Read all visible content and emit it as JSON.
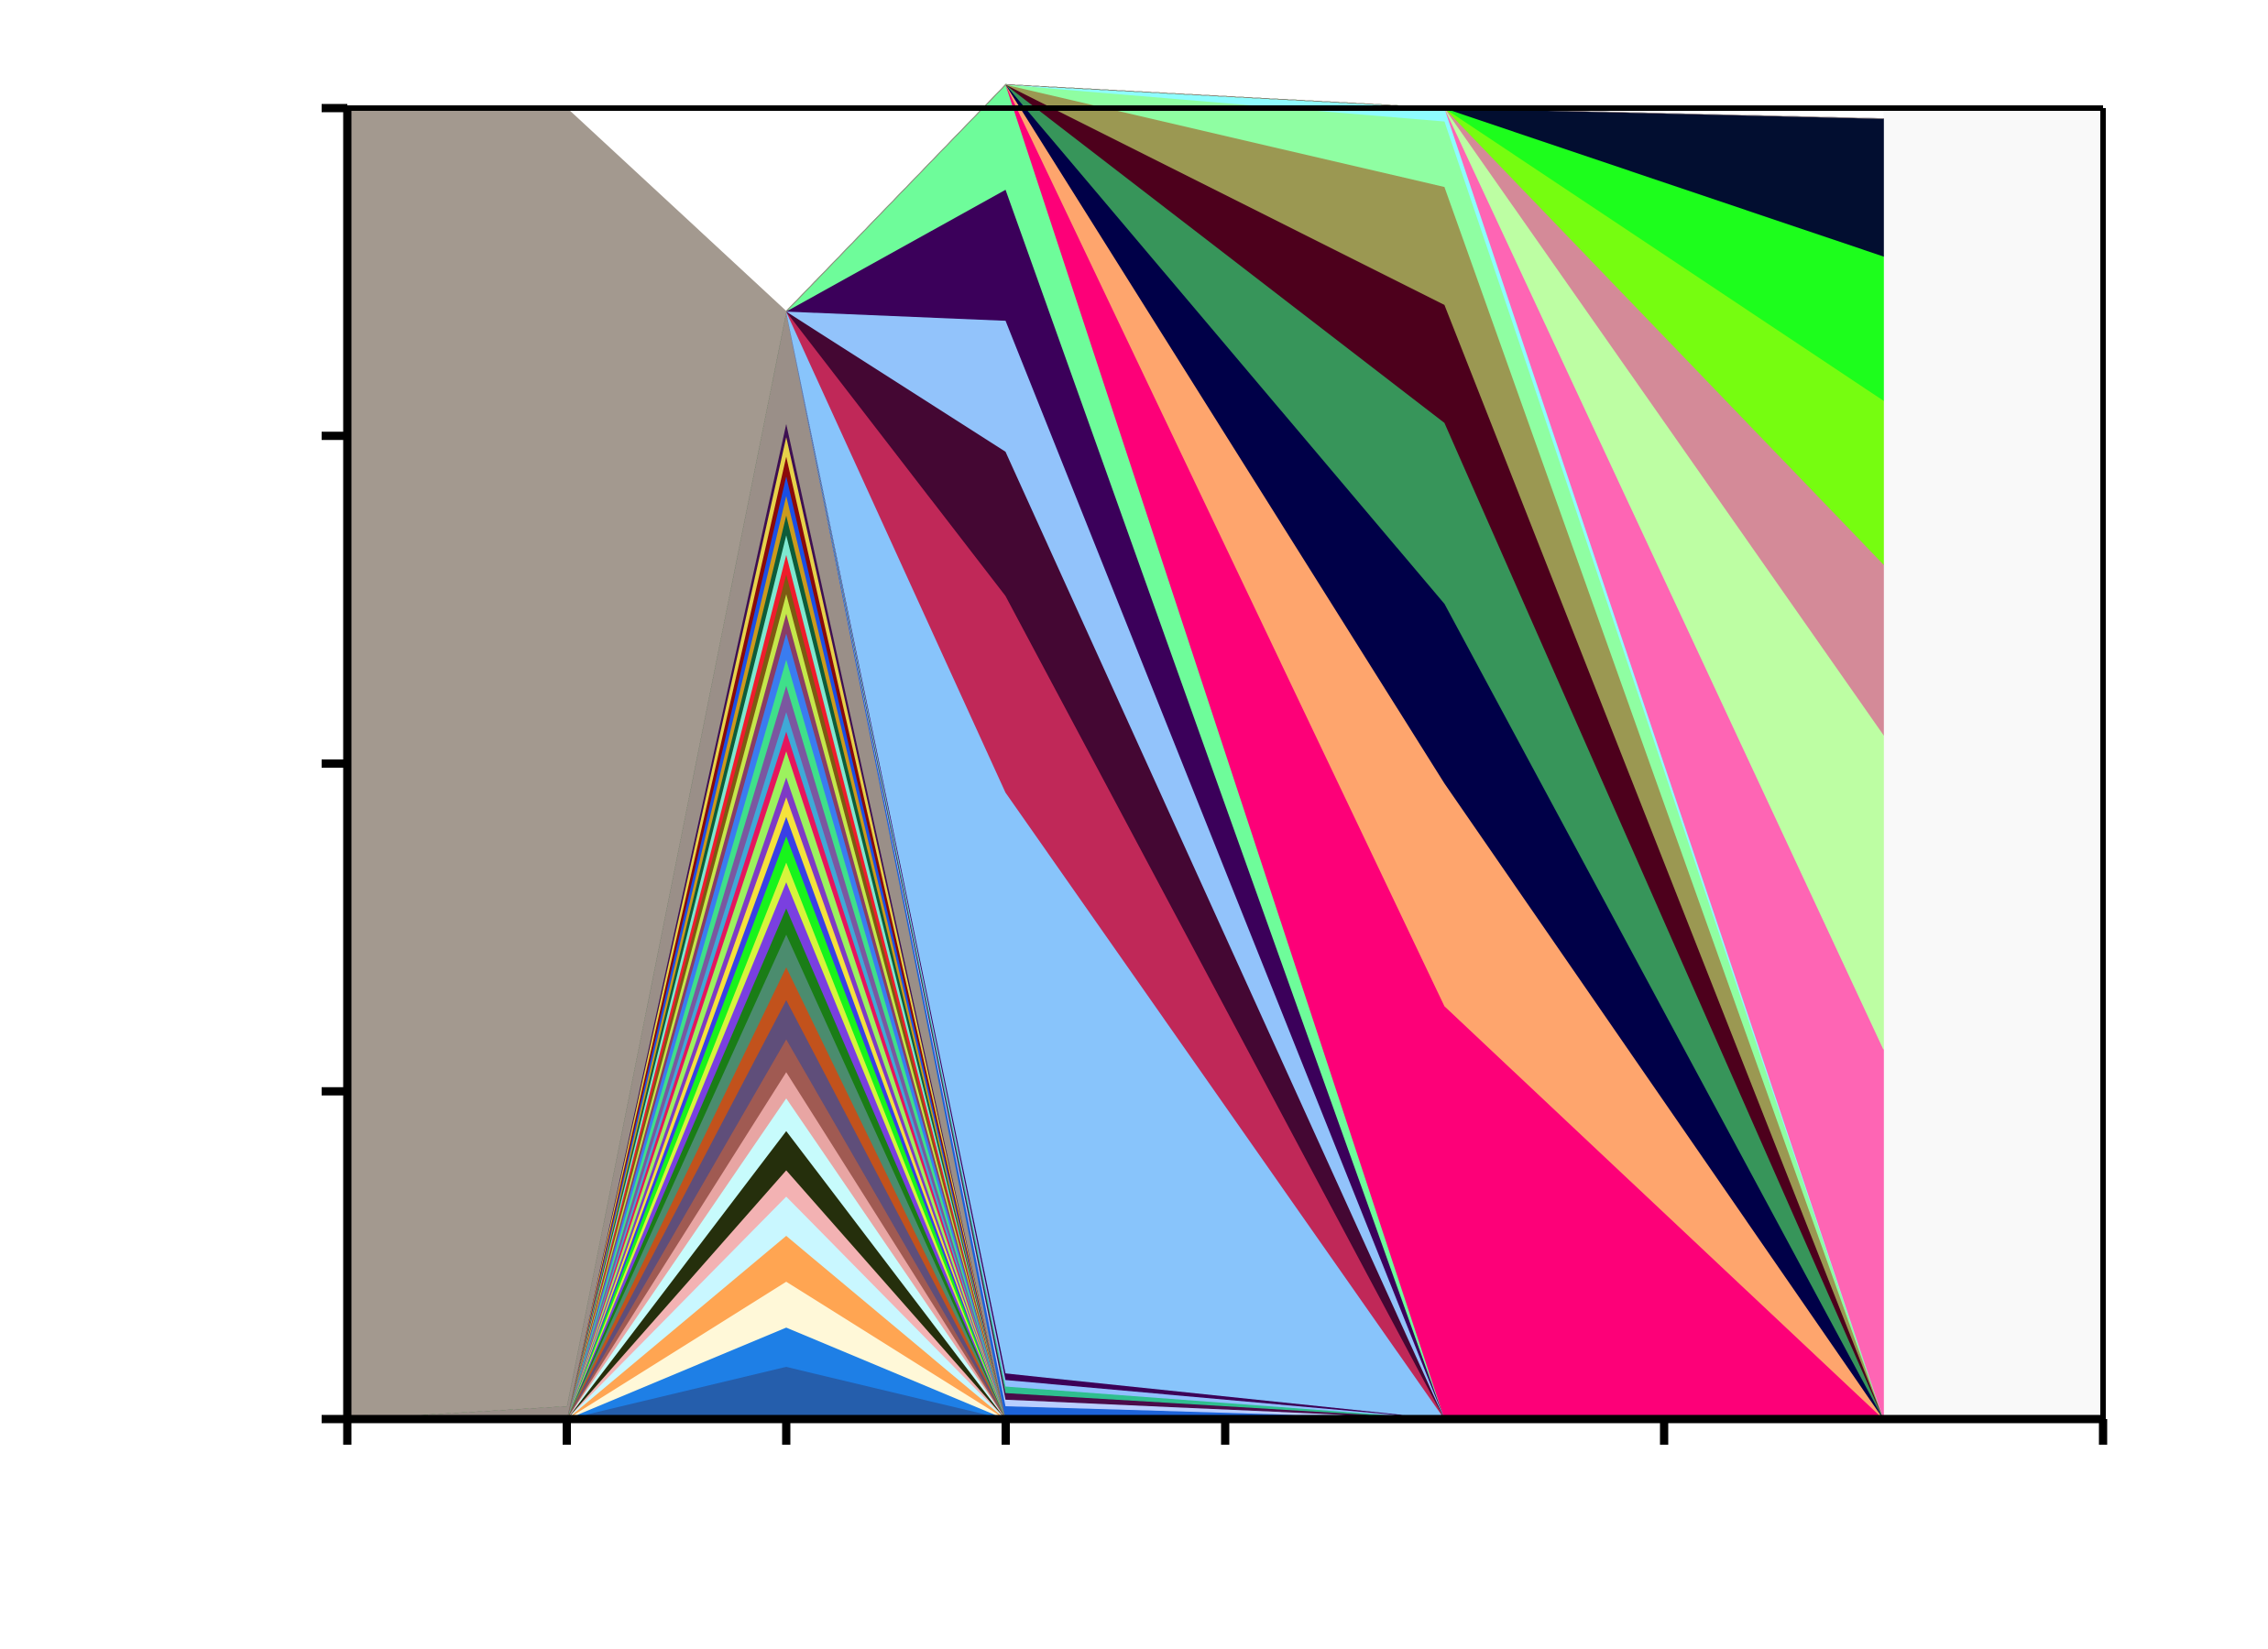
{
  "chart_data": {
    "type": "area",
    "title": "",
    "xlabel": "",
    "ylabel": "",
    "grid": false,
    "legend": "none",
    "x_ticks": [
      0,
      1,
      2,
      3,
      4,
      6,
      8
    ],
    "y_ticks": [
      0,
      0.25,
      0.5,
      0.75,
      1
    ],
    "xlim": [
      0,
      8
    ],
    "ylim": [
      0,
      1
    ],
    "x": [
      0,
      1,
      2,
      3,
      5,
      7
    ],
    "series": [
      {
        "color": "#255eac",
        "values": [
          0.0,
          0.0,
          0.04,
          0.0,
          0.0,
          0.0
        ]
      },
      {
        "color": "#1e7fe6",
        "values": [
          0.0,
          0.0,
          0.03,
          0.0,
          0.0,
          0.0
        ]
      },
      {
        "color": "#fff8d8",
        "values": [
          0.0,
          0.0,
          0.035,
          0.0,
          0.0,
          0.0
        ]
      },
      {
        "color": "#ffa552",
        "values": [
          0.0,
          0.0,
          0.035,
          0.0,
          0.0,
          0.0
        ]
      },
      {
        "color": "#c9f7ff",
        "values": [
          0.0,
          0.0,
          0.03,
          0.0,
          0.0,
          0.0
        ]
      },
      {
        "color": "#f3b2b3",
        "values": [
          0.0,
          0.0,
          0.02,
          0.0,
          0.0,
          0.0
        ]
      },
      {
        "color": "#252f0c",
        "values": [
          0.0,
          0.0,
          0.03,
          0.0,
          0.0,
          0.0
        ]
      },
      {
        "color": "#c7fbfc",
        "values": [
          0.0,
          0.0,
          0.025,
          0.0,
          0.0,
          0.0
        ]
      },
      {
        "color": "#e8a5a3",
        "values": [
          0.0,
          0.0,
          0.02,
          0.0,
          0.0,
          0.0
        ]
      },
      {
        "color": "#a05a52",
        "values": [
          0.0,
          0.0,
          0.025,
          0.0,
          0.0,
          0.0
        ]
      },
      {
        "color": "#5f4e7a",
        "values": [
          0.0,
          0.0,
          0.03,
          0.0,
          0.0,
          0.0
        ]
      },
      {
        "color": "#c2521c",
        "values": [
          0.0,
          0.0,
          0.025,
          0.0,
          0.0,
          0.0
        ]
      },
      {
        "color": "#4b8c6e",
        "values": [
          0.0,
          0.0,
          0.025,
          0.0,
          0.0,
          0.0
        ]
      },
      {
        "color": "#1a7d16",
        "values": [
          0.0,
          0.0,
          0.02,
          0.0,
          0.0,
          0.0
        ]
      },
      {
        "color": "#7a3fe0",
        "values": [
          0.0,
          0.0,
          0.02,
          0.0,
          0.0,
          0.0
        ]
      },
      {
        "color": "#d7f43c",
        "values": [
          0.0,
          0.0,
          0.015,
          0.0,
          0.0,
          0.0
        ]
      },
      {
        "color": "#18f41c",
        "values": [
          0.0,
          0.0,
          0.02,
          0.0,
          0.0,
          0.0
        ]
      },
      {
        "color": "#3a3fe6",
        "values": [
          0.0,
          0.0,
          0.015,
          0.0,
          0.0,
          0.0
        ]
      },
      {
        "color": "#f5e23c",
        "values": [
          0.0,
          0.0,
          0.015,
          0.0,
          0.0,
          0.0
        ]
      },
      {
        "color": "#7e3ac6",
        "values": [
          0.0,
          0.0,
          0.015,
          0.0,
          0.0,
          0.0
        ]
      },
      {
        "color": "#9cf25e",
        "values": [
          0.0,
          0.0,
          0.02,
          0.0,
          0.0,
          0.0
        ]
      },
      {
        "color": "#e6155d",
        "values": [
          0.0,
          0.0,
          0.015,
          0.0,
          0.0,
          0.0
        ]
      },
      {
        "color": "#3fa9d7",
        "values": [
          0.0,
          0.0,
          0.015,
          0.0,
          0.0,
          0.0
        ]
      },
      {
        "color": "#7b57a0",
        "values": [
          0.0,
          0.0,
          0.02,
          0.0,
          0.0,
          0.0
        ]
      },
      {
        "color": "#3fe08a",
        "values": [
          0.0,
          0.0,
          0.02,
          0.0,
          0.0,
          0.0
        ]
      },
      {
        "color": "#3a7cf0",
        "values": [
          0.0,
          0.0,
          0.02,
          0.0,
          0.0,
          0.0
        ]
      },
      {
        "color": "#8a3d64",
        "values": [
          0.0,
          0.0,
          0.015,
          0.0,
          0.0,
          0.0
        ]
      },
      {
        "color": "#c5e84a",
        "values": [
          0.0,
          0.0,
          0.015,
          0.0,
          0.0,
          0.0
        ]
      },
      {
        "color": "#7d5a12",
        "values": [
          0.0,
          0.0,
          0.015,
          0.0,
          0.0,
          0.0
        ]
      },
      {
        "color": "#ef1c2c",
        "values": [
          0.0,
          0.0,
          0.015,
          0.0,
          0.0,
          0.0
        ]
      },
      {
        "color": "#7ee8d0",
        "values": [
          0.0,
          0.0,
          0.015,
          0.0,
          0.0,
          0.0
        ]
      },
      {
        "color": "#0d5c3a",
        "values": [
          0.0,
          0.0,
          0.015,
          0.0,
          0.0,
          0.0
        ]
      },
      {
        "color": "#cc9a1c",
        "values": [
          0.0,
          0.0,
          0.015,
          0.0,
          0.0,
          0.0
        ]
      },
      {
        "color": "#1a4fe6",
        "values": [
          0.0,
          0.0,
          0.015,
          0.0,
          0.0,
          0.0
        ]
      },
      {
        "color": "#8b0a0a",
        "values": [
          0.0,
          0.0,
          0.015,
          0.0,
          0.0,
          0.0
        ]
      },
      {
        "color": "#e6d24a",
        "values": [
          0.0,
          0.0,
          0.015,
          0.0,
          0.0,
          0.0
        ]
      },
      {
        "color": "#3d0f52",
        "values": [
          0.0,
          0.0,
          0.01,
          0.0,
          0.0,
          0.0
        ]
      },
      {
        "color": "#9a8f88",
        "values": [
          0.0,
          0.01,
          0.085,
          0.0,
          0.0,
          0.0
        ]
      },
      {
        "color": "#1d63d9",
        "values": [
          0.0,
          0.0,
          0.0,
          0.01,
          0.0,
          0.0
        ]
      },
      {
        "color": "#b9ceff",
        "values": [
          0.0,
          0.0,
          0.0,
          0.005,
          0.0,
          0.0
        ]
      },
      {
        "color": "#4a0b4a",
        "values": [
          0.0,
          0.0,
          0.0,
          0.005,
          0.0,
          0.0
        ]
      },
      {
        "color": "#2fbf8f",
        "values": [
          0.0,
          0.0,
          0.0,
          0.005,
          0.0,
          0.0
        ]
      },
      {
        "color": "#90bfff",
        "values": [
          0.0,
          0.0,
          0.0,
          0.005,
          0.0,
          0.0
        ]
      },
      {
        "color": "#3c0057",
        "values": [
          0.0,
          0.0,
          0.0,
          0.005,
          0.0,
          0.0
        ]
      },
      {
        "color": "#88c4fb",
        "values": [
          0.0,
          0.0,
          0.0,
          0.443,
          0.0,
          0.0
        ]
      },
      {
        "color": "#c02858",
        "values": [
          0.0,
          0.0,
          0.0,
          0.15,
          0.0,
          0.0
        ]
      },
      {
        "color": "#440733",
        "values": [
          0.0,
          0.0,
          0.0,
          0.11,
          0.0,
          0.0
        ]
      },
      {
        "color": "#92c3fb",
        "values": [
          0.0,
          0.0,
          0.0,
          0.1,
          0.0,
          0.0
        ]
      },
      {
        "color": "#3b005a",
        "values": [
          0.0,
          0.0,
          0.0,
          0.1,
          0.0,
          0.0
        ]
      },
      {
        "color": "#6efc9a",
        "values": [
          0.0,
          0.0,
          0.0,
          0.08,
          0.0,
          0.0
        ]
      },
      {
        "color": "#fd0078",
        "values": [
          0.0,
          0.0,
          0.0,
          0.0,
          0.315,
          0.0
        ]
      },
      {
        "color": "#fea56d",
        "values": [
          0.0,
          0.0,
          0.0,
          0.0,
          0.17,
          0.0
        ]
      },
      {
        "color": "#000048",
        "values": [
          0.0,
          0.0,
          0.0,
          0.0,
          0.137,
          0.0
        ]
      },
      {
        "color": "#37955a",
        "values": [
          0.0,
          0.0,
          0.0,
          0.0,
          0.138,
          0.0
        ]
      },
      {
        "color": "#4d001c",
        "values": [
          0.0,
          0.0,
          0.0,
          0.0,
          0.09,
          0.0
        ]
      },
      {
        "color": "#9b9852",
        "values": [
          0.0,
          0.0,
          0.0,
          0.0,
          0.09,
          0.0
        ]
      },
      {
        "color": "#8ffea2",
        "values": [
          0.0,
          0.0,
          0.0,
          0.0,
          0.05,
          0.0
        ]
      },
      {
        "color": "#8efcff",
        "values": [
          0.0,
          0.0,
          0.0,
          0.0,
          0.01,
          0.0
        ]
      },
      {
        "color": "#fe65b4",
        "values": [
          0.0,
          0.0,
          0.0,
          0.0,
          0.0,
          0.282
        ]
      },
      {
        "color": "#bdfea3",
        "values": [
          0.0,
          0.0,
          0.0,
          0.0,
          0.0,
          0.24
        ]
      },
      {
        "color": "#d48a98",
        "values": [
          0.0,
          0.0,
          0.0,
          0.0,
          0.0,
          0.13
        ]
      },
      {
        "color": "#76fd10",
        "values": [
          0.0,
          0.0,
          0.0,
          0.0,
          0.0,
          0.125
        ]
      },
      {
        "color": "#1dfe1c",
        "values": [
          0.0,
          0.0,
          0.0,
          0.0,
          0.0,
          0.11
        ]
      },
      {
        "color": "#020e30",
        "values": [
          0.0,
          0.0,
          0.0,
          0.0,
          0.0,
          0.105
        ]
      },
      {
        "color": "#7e5a7a",
        "values": [
          0.0,
          0.0,
          0.0,
          0.0,
          0.0,
          0.0
        ]
      },
      {
        "color": "#a3998f",
        "values": [
          1.0,
          0.99,
          0.0,
          0.0,
          0.0,
          0.0
        ]
      }
    ],
    "background_band": {
      "x_from": 7,
      "x_to": 8,
      "color": "#f9f9f9"
    }
  }
}
